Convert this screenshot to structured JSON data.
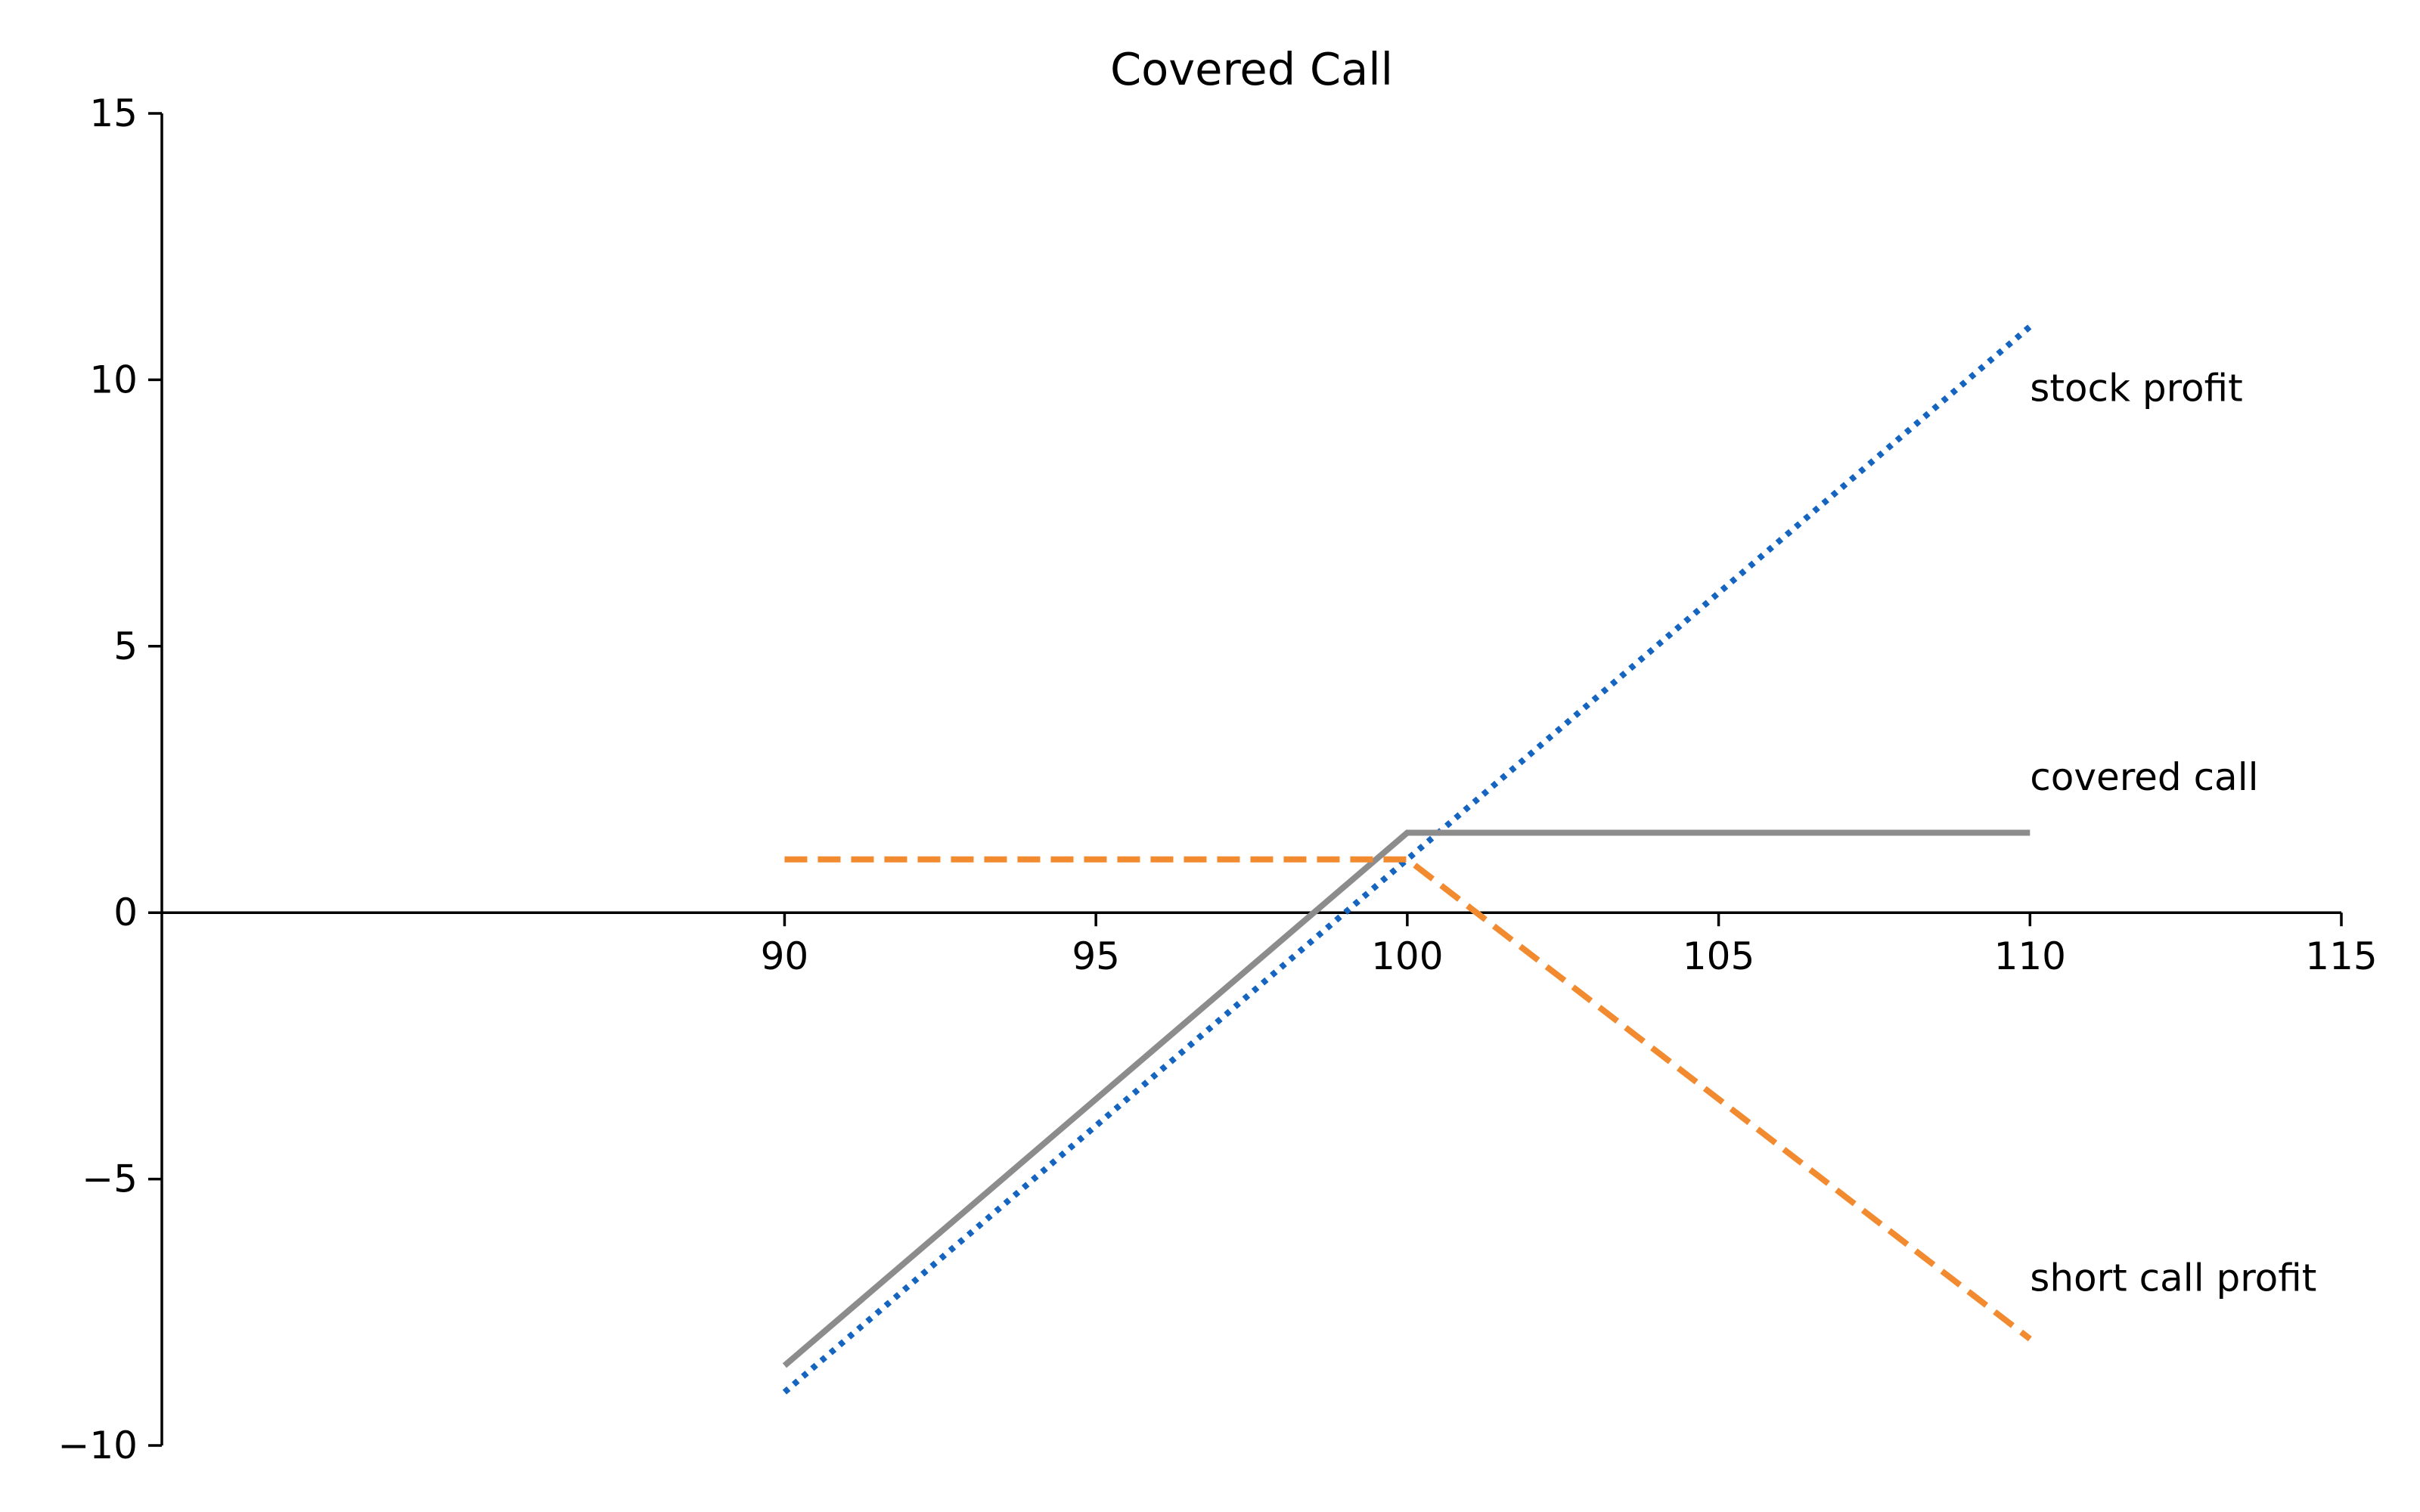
{
  "chart_data": {
    "type": "line",
    "title": "Covered Call",
    "xlabel": "",
    "ylabel": "",
    "xlim": [
      80,
      115
    ],
    "ylim": [
      -10,
      15
    ],
    "x_ticks": [
      90,
      95,
      100,
      105,
      110,
      115
    ],
    "y_ticks": [
      -10,
      -5,
      0,
      5,
      10,
      15
    ],
    "y_tick_labels": [
      "−10",
      "−5",
      "0",
      "5",
      "10",
      "15"
    ],
    "grid": false,
    "legend": "none",
    "series": [
      {
        "name": "stock profit",
        "color": "#1565c0",
        "style": "dotted",
        "x": [
          90,
          110
        ],
        "y": [
          -9,
          11
        ]
      },
      {
        "name": "covered call",
        "color": "#8c8c8c",
        "style": "solid",
        "x": [
          90,
          100,
          110
        ],
        "y": [
          -8.5,
          1.5,
          1.5
        ]
      },
      {
        "name": "short call profit",
        "color": "#f28a30",
        "style": "dashed",
        "x": [
          90,
          100,
          110
        ],
        "y": [
          1,
          1,
          -8
        ]
      }
    ],
    "annotations": [
      {
        "text": "stock profit",
        "x": 110,
        "y": 9.6
      },
      {
        "text": "covered call",
        "x": 110,
        "y": 2.3
      },
      {
        "text": "short call profit",
        "x": 110,
        "y": -7.1
      }
    ]
  }
}
